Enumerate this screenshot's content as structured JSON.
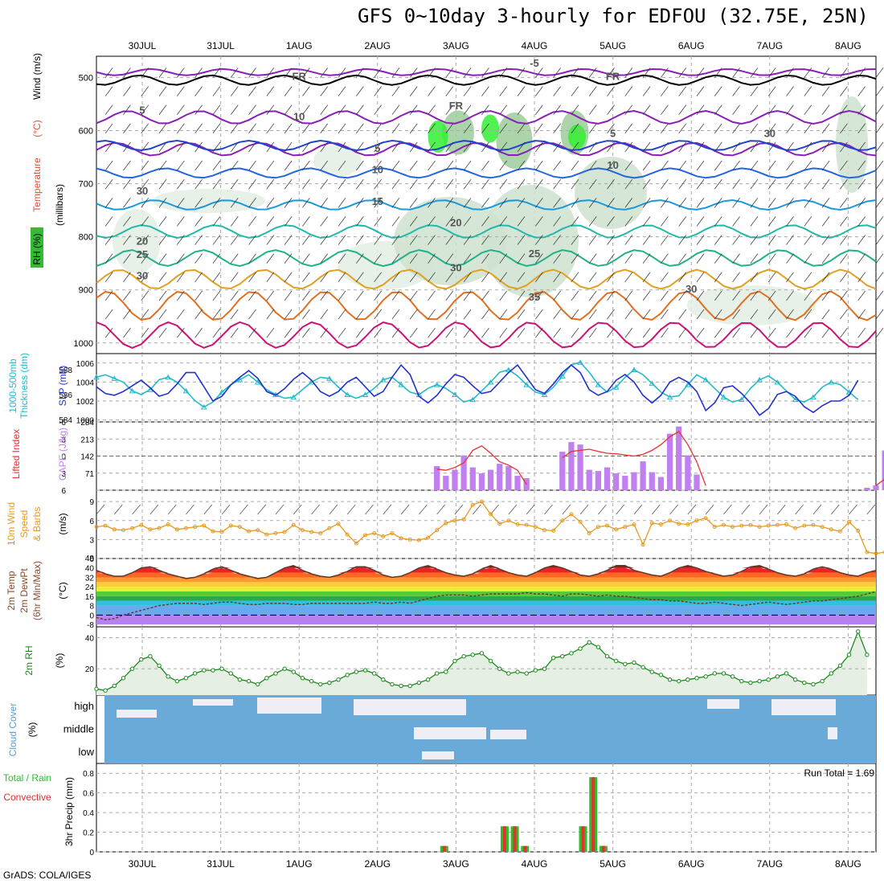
{
  "page": {
    "title": "GFS 0~10day 3-hourly for EDFOU (32.75E, 25N)",
    "footer": "GrADS: COLA/IGES"
  },
  "dates": [
    "30JUL",
    "31JUL",
    "1AUG",
    "2AUG",
    "3AUG",
    "4AUG",
    "5AUG",
    "6AUG",
    "7AUG",
    "8AUG"
  ],
  "colors": {
    "temperature": "#e8503a",
    "rh_green": "#2ac02a",
    "wind": "#000000",
    "thickness": "#22bbcc",
    "slp": "#2233cc",
    "cape": "#c080f0",
    "lifted_index": "#e83030",
    "wind10m": "#e89a20",
    "rh2m": "#1a8a1a",
    "cloud": "#6aaad8",
    "cloud_label": "#5aa0d0",
    "precip_total": "#2ac02a",
    "precip_conv": "#e83030"
  },
  "chart_data": [
    {
      "type": "heatmap",
      "panel": "upper-air",
      "ylabel_parts": [
        "RH (%)",
        "Temperature",
        "(°C)",
        "Wind (m/s)"
      ],
      "ylabel_sub": "(millibars)",
      "yticks": [
        500,
        600,
        700,
        800,
        900,
        1000
      ],
      "ylim": [
        460,
        1020
      ],
      "contour_labels": [
        {
          "text": "FR",
          "date": "1AUG",
          "p": 505
        },
        {
          "text": "FR",
          "date": "3AUG",
          "p": 560
        },
        {
          "text": "FR",
          "date": "5AUG",
          "p": 505
        },
        {
          "text": "-5",
          "date": "4AUG",
          "p": 480
        },
        {
          "text": "5",
          "date": "30JUL",
          "p": 568
        },
        {
          "text": "5",
          "date": "2AUG",
          "p": 640
        },
        {
          "text": "5",
          "date": "5AUG",
          "p": 612
        },
        {
          "text": "10",
          "date": "2AUG",
          "p": 680
        },
        {
          "text": "10",
          "date": "5AUG",
          "p": 672
        },
        {
          "text": "15",
          "date": "2AUG",
          "p": 740
        },
        {
          "text": "20",
          "date": "30JUL",
          "p": 815
        },
        {
          "text": "20",
          "date": "3AUG",
          "p": 780
        },
        {
          "text": "25",
          "date": "30JUL",
          "p": 840
        },
        {
          "text": "25",
          "date": "4AUG",
          "p": 838
        },
        {
          "text": "30",
          "date": "30JUL",
          "p": 880
        },
        {
          "text": "30",
          "date": "3AUG",
          "p": 865
        },
        {
          "text": "30",
          "date": "6AUG",
          "p": 905
        },
        {
          "text": "35",
          "date": "4AUG",
          "p": 920
        },
        {
          "text": "10",
          "date": "1AUG",
          "p": 580
        },
        {
          "text": "30",
          "date": "30JUL",
          "p": 720
        },
        {
          "text": "30",
          "date": "7AUG",
          "p": 612
        }
      ],
      "isotherm_levels": [
        -5,
        0,
        5,
        10,
        15,
        20,
        25,
        30,
        35
      ]
    },
    {
      "type": "line",
      "panel": "slp-thickness",
      "ylabel_left": [
        "1000-500mb",
        "Thickness (dm)"
      ],
      "ylabel_right": "SLP (mb)",
      "thickness_ticks": [
        584,
        586,
        588
      ],
      "slp_ticks": [
        1000,
        1002,
        1004,
        1006
      ],
      "series": [
        {
          "name": "SLP (mb)",
          "ylim": [
            999.8,
            1007
          ],
          "values": [
            1003.5,
            1002.8,
            1002.6,
            1003.0,
            1003.6,
            1004.2,
            1003.4,
            1002.5,
            1002.8,
            1003.8,
            1005.0,
            1005.0,
            1003.5,
            1002.0,
            1002.5,
            1003.7,
            1004.5,
            1005.2,
            1004.4,
            1003.0,
            1002.6,
            1003.3,
            1004.3,
            1005.0,
            1004.2,
            1003.0,
            1002.5,
            1003.0,
            1004.0,
            1004.5,
            1003.5,
            1002.5,
            1003.0,
            1004.5,
            1005.8,
            1004.8,
            1002.5,
            1001.8,
            1002.6,
            1003.8,
            1004.8,
            1004.5,
            1003.6,
            1002.8,
            1003.0,
            1004.0,
            1005.0,
            1005.8,
            1004.5,
            1003.2,
            1002.8,
            1003.8,
            1005.0,
            1005.8,
            1005.0,
            1003.2,
            1002.6,
            1003.0,
            1004.2,
            1004.8,
            1004.0,
            1002.6,
            1001.8,
            1002.6,
            1004.0,
            1004.5,
            1004.0,
            1003.0,
            1001.0,
            1001.8,
            1003.4,
            1003.6,
            1002.8,
            1001.8,
            1000.5,
            1001.2,
            1002.7,
            1003.0,
            1002.5,
            1001.4,
            1000.8,
            1001.5,
            1002.0,
            1002.0,
            1002.6,
            1004.2
          ]
        },
        {
          "name": "1000-500mb Thickness (dm)",
          "ylim": [
            583.8,
            589.3
          ],
          "values": [
            587.4,
            587.6,
            587.3,
            587.0,
            586.3,
            586.0,
            586.4,
            587.2,
            587.4,
            587.0,
            586.3,
            585.5,
            585.0,
            585.4,
            586.2,
            586.8,
            587.2,
            587.6,
            587.0,
            586.4,
            586.0,
            585.7,
            585.8,
            586.4,
            587.0,
            587.4,
            587.3,
            586.6,
            586.0,
            585.7,
            586.0,
            586.5,
            587.2,
            587.4,
            586.8,
            586.2,
            586.0,
            586.5,
            586.8,
            586.5,
            586.0,
            585.4,
            585.6,
            586.3,
            587.0,
            587.8,
            588.0,
            587.5,
            586.8,
            586.2,
            586.0,
            586.6,
            587.5,
            588.4,
            588.6,
            587.8,
            586.8,
            586.2,
            586.6,
            587.4,
            588.0,
            587.6,
            586.9,
            586.2,
            585.8,
            585.9,
            586.8,
            587.6,
            587.2,
            586.5,
            585.8,
            585.4,
            585.6,
            586.5,
            587.2,
            587.5,
            587.0,
            586.3,
            585.6,
            585.4,
            585.8,
            586.6,
            587.0,
            586.8,
            586.2,
            585.6
          ]
        }
      ]
    },
    {
      "type": "bar",
      "panel": "cape-li",
      "ylabel_left": "Lifted Index",
      "ylabel_right": "CAPE (J/kg)",
      "cape_ticks": [
        71,
        142,
        213,
        284
      ],
      "li_ticks": [
        -6,
        -3,
        0,
        3,
        6
      ],
      "cape_ylim": [
        0,
        284
      ],
      "li_ylim": [
        -6,
        6
      ],
      "reference_line": 0,
      "cape": [
        0,
        0,
        0,
        0,
        0,
        0,
        0,
        0,
        0,
        0,
        0,
        0,
        0,
        0,
        0,
        0,
        0,
        0,
        0,
        0,
        0,
        0,
        0,
        0,
        0,
        0,
        0,
        0,
        0,
        0,
        0,
        0,
        0,
        0,
        0,
        0,
        0,
        0,
        100,
        60,
        85,
        145,
        95,
        70,
        85,
        110,
        100,
        60,
        50,
        0,
        0,
        0,
        160,
        200,
        190,
        85,
        80,
        95,
        70,
        60,
        75,
        120,
        75,
        55,
        235,
        265,
        145,
        65,
        0,
        0,
        0,
        0,
        0,
        0,
        0,
        0,
        0,
        0,
        0,
        0,
        0,
        0,
        0,
        0,
        0,
        0,
        10,
        20,
        165,
        170
      ],
      "lifted_index": [
        null,
        null,
        null,
        null,
        null,
        null,
        null,
        null,
        null,
        null,
        null,
        null,
        null,
        null,
        null,
        null,
        null,
        null,
        null,
        null,
        null,
        null,
        null,
        null,
        null,
        null,
        null,
        null,
        null,
        null,
        null,
        null,
        null,
        null,
        null,
        null,
        null,
        null,
        2.3,
        2.5,
        2.0,
        1.2,
        -1.0,
        -1.8,
        -0.5,
        1.0,
        1.6,
        2.5,
        5.0,
        null,
        null,
        null,
        0.3,
        -0.8,
        -1.0,
        -1.2,
        -0.8,
        -0.5,
        -0.4,
        -0.2,
        0.0,
        -0.3,
        -1.0,
        -2.0,
        -3.4,
        -4.3,
        -2.0,
        1.0,
        5.2,
        null,
        null,
        null,
        null,
        null,
        null,
        null,
        null,
        null,
        null,
        null,
        null,
        null,
        null,
        null,
        null,
        null,
        null,
        5.2,
        4.0,
        -0.5,
        -0.5
      ]
    },
    {
      "type": "line",
      "panel": "wind10m",
      "ylabel_left": [
        "10m Wind",
        "Speed",
        "& Barbs"
      ],
      "ylabel_right": "(m/s)",
      "yticks": [
        0,
        3,
        6,
        9
      ],
      "ylim": [
        0,
        10.8
      ],
      "series": [
        {
          "name": "10m Wind Speed",
          "values": [
            5.0,
            5.2,
            4.6,
            4.5,
            4.8,
            5.3,
            4.6,
            4.8,
            5.4,
            4.6,
            4.8,
            5.0,
            5.2,
            4.3,
            4.2,
            5.2,
            5.0,
            4.3,
            4.5,
            3.8,
            4.0,
            4.2,
            5.3,
            4.5,
            4.2,
            4.0,
            4.8,
            5.5,
            3.8,
            2.4,
            3.7,
            4.0,
            3.5,
            4.0,
            3.2,
            3.0,
            2.9,
            3.3,
            4.5,
            5.6,
            6.0,
            6.2,
            8.5,
            9.0,
            7.0,
            5.5,
            6.0,
            5.4,
            5.3,
            5.0,
            4.5,
            4.4,
            6.0,
            7.0,
            5.8,
            4.0,
            5.0,
            5.2,
            4.6,
            5.0,
            5.4,
            2.2,
            5.6,
            5.4,
            6.0,
            5.5,
            5.4,
            6.0,
            6.4,
            5.0,
            5.3,
            5.0,
            5.2,
            5.3,
            5.0,
            5.2,
            5.3,
            5.4,
            4.8,
            5.2,
            5.3,
            5.0,
            4.6,
            4.3,
            5.8,
            4.4,
            1.0,
            0.8,
            1.0,
            1.2,
            1.4,
            2.6,
            3.3,
            6.1,
            4.2,
            11.2,
            7.0
          ]
        }
      ]
    },
    {
      "type": "area",
      "panel": "temp2m",
      "ylabel_left": [
        "2m Temp",
        "2m DewPt",
        "(6hr Min/Max)"
      ],
      "ylabel_right": "(°C)",
      "yticks": [
        -8,
        0,
        8,
        16,
        24,
        32,
        40
      ],
      "extra_tick": "48",
      "ylim": [
        -10,
        48
      ],
      "series": [
        {
          "name": "2m Temp",
          "values": [
            38,
            35,
            33,
            33,
            36,
            40,
            41,
            38,
            35,
            33,
            31,
            32,
            35,
            39,
            41,
            38,
            35,
            33,
            31,
            32,
            36,
            40,
            42,
            38,
            35,
            33,
            32,
            34,
            37,
            41,
            41,
            38,
            34,
            32,
            33,
            36,
            40,
            42,
            39,
            36,
            34,
            33,
            35,
            39,
            42,
            39,
            36,
            34,
            33,
            36,
            40,
            42,
            40,
            37,
            34,
            33,
            35,
            38,
            42,
            42,
            38,
            36,
            34,
            33,
            36,
            40,
            42,
            40,
            37,
            35,
            33,
            34,
            37,
            41,
            42,
            39,
            36,
            34,
            33,
            35,
            39,
            41,
            39,
            36,
            34,
            33,
            36,
            38
          ]
        },
        {
          "name": "2m DewPt",
          "values": [
            -2,
            -4,
            -3,
            0,
            2,
            4,
            6,
            8,
            9,
            10,
            10,
            10,
            9,
            10,
            11,
            11,
            10,
            9,
            9,
            10,
            10,
            10,
            9,
            9,
            10,
            10,
            10,
            10,
            10,
            10,
            10,
            11,
            10,
            10,
            11,
            10,
            12,
            14,
            16,
            17,
            17,
            17,
            16,
            17,
            18,
            18,
            18,
            18,
            19,
            18,
            18,
            17,
            16,
            18,
            18,
            17,
            16,
            17,
            16,
            16,
            15,
            14,
            13,
            13,
            12,
            12,
            11,
            10,
            10,
            11,
            10,
            9,
            8,
            9,
            10,
            11,
            10,
            9,
            10,
            11,
            12,
            12,
            13,
            14,
            15,
            16,
            18,
            20
          ]
        }
      ]
    },
    {
      "type": "area",
      "panel": "rh2m",
      "ylabel_left": "2m RH",
      "ylabel_right": "(%)",
      "yticks": [
        20,
        40
      ],
      "ylim": [
        3,
        47
      ],
      "series": [
        {
          "name": "2m RH",
          "values": [
            7,
            6,
            9,
            14,
            20,
            26,
            28,
            22,
            15,
            12,
            14,
            17,
            19,
            19,
            20,
            17,
            13,
            12,
            10,
            14,
            17,
            20,
            18,
            14,
            12,
            10,
            11,
            13,
            16,
            18,
            19,
            17,
            13,
            10,
            9,
            9,
            11,
            13,
            17,
            18,
            25,
            28,
            29,
            30,
            25,
            20,
            17,
            18,
            17,
            19,
            20,
            27,
            28,
            30,
            33,
            37,
            34,
            28,
            25,
            23,
            24,
            21,
            18,
            16,
            13,
            12,
            13,
            14,
            15,
            17,
            17,
            15,
            12,
            11,
            12,
            13,
            15,
            17,
            13,
            11,
            10,
            12,
            17,
            22,
            29,
            44,
            29
          ]
        }
      ]
    },
    {
      "type": "heatmap",
      "panel": "cloud-cover",
      "ylabel_left": "Cloud Cover",
      "ylabel_right": "(%)",
      "row_labels": [
        "high",
        "middle",
        "low"
      ]
    },
    {
      "type": "bar",
      "panel": "precip",
      "ylabel_left": [
        "Total / Rain",
        "Convective"
      ],
      "ylabel_right": "3hr Precip (mm)",
      "annotation": "Run Total = 1.69",
      "yticks": [
        0,
        0.2,
        0.4,
        0.6,
        0.8
      ],
      "ylim": [
        0,
        0.9
      ],
      "bars": [
        {
          "date": "2AUG",
          "offset": 0.85,
          "total": 0.06,
          "convective": 0.06
        },
        {
          "date": "3AUG",
          "offset": 0.62,
          "total": 0.26,
          "convective": 0.26
        },
        {
          "date": "3AUG",
          "offset": 0.75,
          "total": 0.26,
          "convective": 0.26
        },
        {
          "date": "3AUG",
          "offset": 0.88,
          "total": 0.06,
          "convective": 0.06
        },
        {
          "date": "4AUG",
          "offset": 0.62,
          "total": 0.26,
          "convective": 0.26
        },
        {
          "date": "4AUG",
          "offset": 0.75,
          "total": 0.76,
          "convective": 0.76
        },
        {
          "date": "4AUG",
          "offset": 0.88,
          "total": 0.06,
          "convective": 0.06
        }
      ]
    }
  ]
}
